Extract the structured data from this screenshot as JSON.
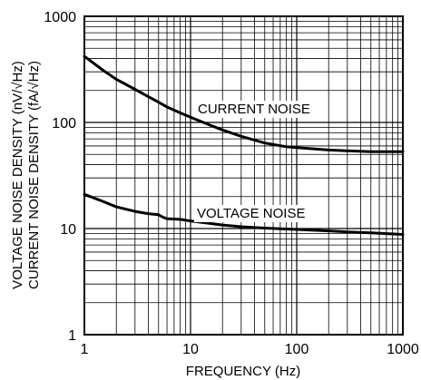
{
  "chart_data": {
    "type": "line",
    "title": "",
    "xlabel": "FREQUENCY (Hz)",
    "ylabel": [
      "VOLTAGE NOISE DENSITY (nV/√Hz)",
      "CURRENT NOISE DENSITY (fA/√Hz)"
    ],
    "x_scale": "log",
    "y_scale": "log",
    "xlim": [
      1,
      1000
    ],
    "ylim": [
      1,
      1000
    ],
    "x_ticks": [
      {
        "value": 1,
        "label": "1"
      },
      {
        "value": 10,
        "label": "10"
      },
      {
        "value": 100,
        "label": "100"
      },
      {
        "value": 1000,
        "label": "1000"
      }
    ],
    "y_ticks": [
      {
        "value": 1,
        "label": "1"
      },
      {
        "value": 10,
        "label": "10"
      },
      {
        "value": 100,
        "label": "100"
      },
      {
        "value": 1000,
        "label": "1000"
      }
    ],
    "grid": true,
    "series": [
      {
        "name": "CURRENT NOISE",
        "x": [
          1,
          1.5,
          2,
          3,
          4,
          5,
          6,
          8,
          10,
          15,
          20,
          30,
          50,
          80,
          100,
          200,
          300,
          500,
          700,
          1000
        ],
        "y": [
          420,
          310,
          255,
          205,
          175,
          155,
          140,
          123,
          112,
          95,
          85,
          74,
          64,
          59,
          58,
          55,
          54,
          53,
          53,
          53
        ]
      },
      {
        "name": "VOLTAGE NOISE",
        "x": [
          1,
          1.5,
          2,
          3,
          4,
          5,
          5.5,
          6,
          8,
          10,
          15,
          20,
          30,
          50,
          100,
          200,
          300,
          500,
          1000
        ],
        "y": [
          21,
          18,
          16,
          14.5,
          13.8,
          13.5,
          12.8,
          12.4,
          12.2,
          11.8,
          11.2,
          10.8,
          10.4,
          10.1,
          9.8,
          9.5,
          9.3,
          9.1,
          8.8
        ]
      }
    ]
  }
}
